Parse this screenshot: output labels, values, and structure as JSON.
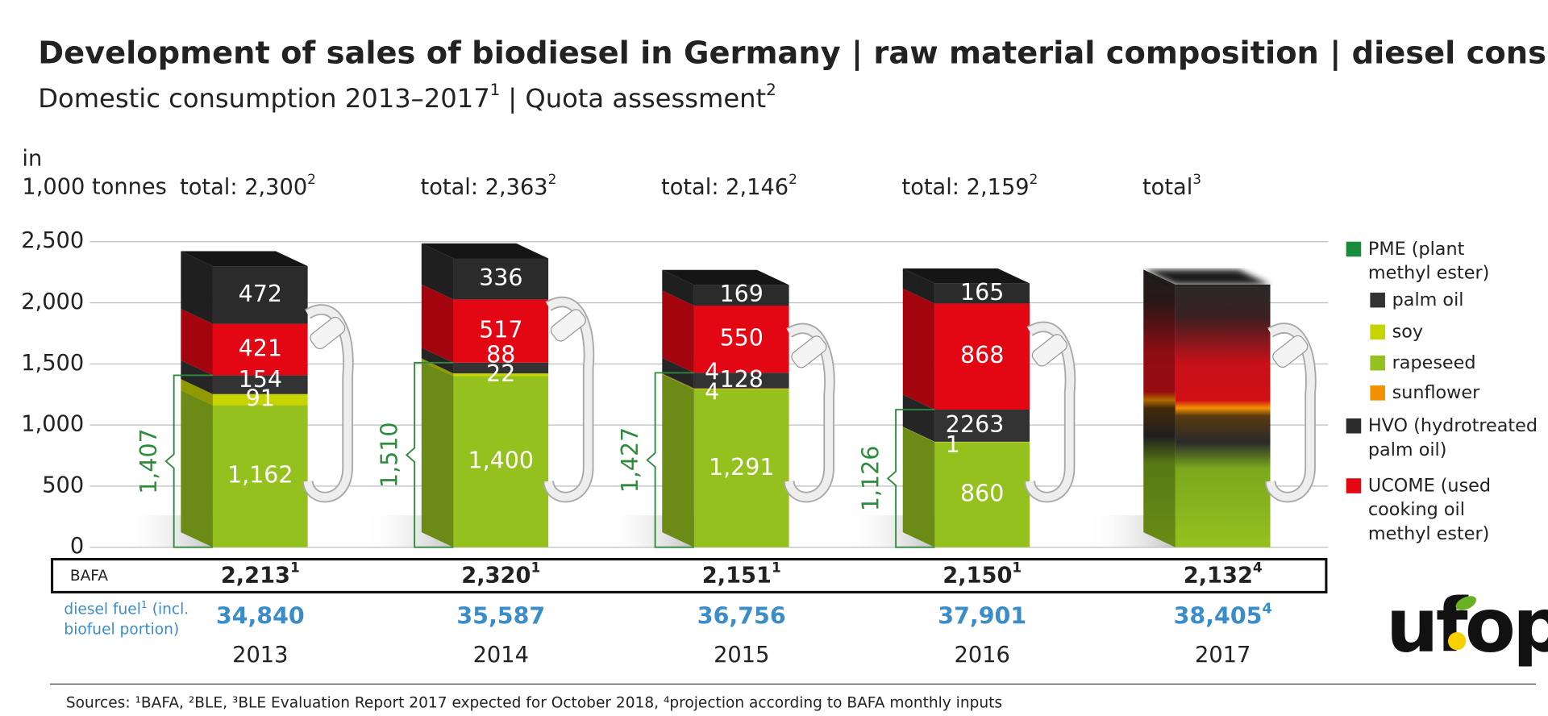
{
  "title": "Development of sales of biodiesel in Germany | raw material composition | diesel consumption",
  "subtitle": [
    {
      "text": "Domestic consumption 2013–2017",
      "note": "1"
    },
    {
      "text": "| Quota assessment",
      "note": "2"
    }
  ],
  "chart_data": {
    "type": "stacked-bar",
    "y_label": [
      "in",
      "1,000 tonnes"
    ],
    "categories": [
      "2013",
      "2014",
      "2015",
      "2016",
      "2017"
    ],
    "totals": [
      {
        "text": "total: 2,300",
        "note": "2"
      },
      {
        "text": "total: 2,363",
        "note": "2"
      },
      {
        "text": "total: 2,146",
        "note": "2"
      },
      {
        "text": "total: 2,159",
        "note": "2"
      },
      {
        "text": "total",
        "note": "3"
      }
    ],
    "series": [
      {
        "name": "rapeseed",
        "color": "#95c11f",
        "values": [
          1162,
          1400,
          1291,
          860,
          null
        ],
        "value_labels": [
          "1,162",
          "1,400",
          "1,291",
          "860",
          null
        ]
      },
      {
        "name": "sunflower",
        "color": "#f39200",
        "values": [
          null,
          null,
          4,
          1,
          null
        ]
      },
      {
        "name": "soy",
        "color": "#c8d400",
        "values": [
          91,
          22,
          4,
          2,
          null
        ]
      },
      {
        "name": "palm oil",
        "color": "#333333",
        "values": [
          154,
          88,
          128,
          263,
          null
        ]
      },
      {
        "name": "UCOME (used cooking oil methyl ester)",
        "color": "#e30613",
        "values": [
          421,
          517,
          550,
          868,
          null
        ]
      },
      {
        "name": "HVO (hydrotreated palm oil)",
        "color": "#2b2b2b",
        "values": [
          472,
          336,
          169,
          165,
          null
        ]
      }
    ],
    "legend_group": {
      "name": "PME (plant methyl ester)",
      "color": "#1a8a3c"
    },
    "pme_totals": {
      "values": [
        1407,
        1510,
        1427,
        1126,
        null
      ],
      "value_labels": [
        "1,407",
        "1,510",
        "1,427",
        "1,126",
        null
      ]
    },
    "ylim": [
      0,
      2500
    ],
    "yticks": [
      0,
      500,
      {
        "value": 1000,
        "label": "1,000"
      },
      {
        "value": 1500,
        "label": "1,500"
      },
      {
        "value": 2000,
        "label": "2,000"
      },
      {
        "value": 2500,
        "label": "2,500"
      }
    ],
    "grid": true
  },
  "table": {
    "rows": [
      {
        "label": "BAFA",
        "cells": [
          {
            "text": "2,213",
            "note": "1"
          },
          {
            "text": "2,320",
            "note": "1"
          },
          {
            "text": "2,151",
            "note": "1"
          },
          {
            "text": "2,150",
            "note": "1"
          },
          {
            "text": "2,132",
            "note": "4"
          }
        ]
      },
      {
        "label": {
          "text": "diesel fuel",
          "note": "1",
          "rest": "(incl. biofuel portion)"
        },
        "cells": [
          {
            "text": "34,840"
          },
          {
            "text": "35,587"
          },
          {
            "text": "36,756"
          },
          {
            "text": "37,901"
          },
          {
            "text": "38,405",
            "note": "4"
          }
        ]
      }
    ]
  },
  "sources": "Sources: ¹BAFA, ²BLE, ³BLE Evaluation Report 2017 expected for October 2018, ⁴projection according to BAFA monthly inputs",
  "logo": "ufop"
}
